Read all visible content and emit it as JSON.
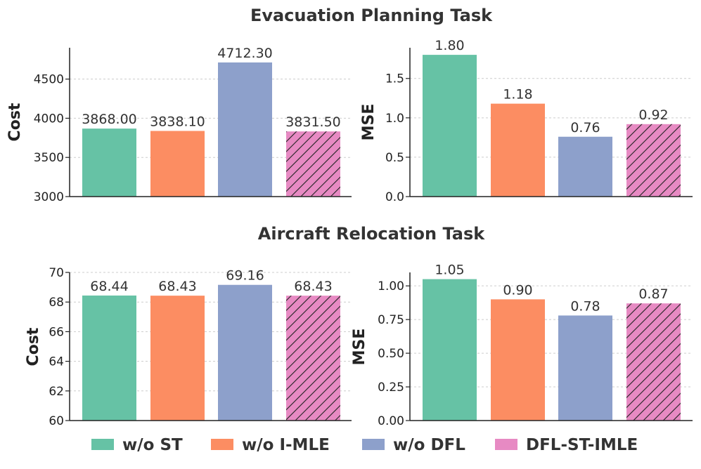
{
  "section_titles": [
    "Evacuation Planning Task",
    "Aircraft Relocation Task"
  ],
  "legend": [
    {
      "label": "w/o ST",
      "color": "#66c2a5",
      "hatch": false
    },
    {
      "label": "w/o I-MLE",
      "color": "#fc8d62",
      "hatch": false
    },
    {
      "label": "w/o DFL",
      "color": "#8da0cb",
      "hatch": false
    },
    {
      "label": "DFL-ST-IMLE",
      "color": "#e78ac3",
      "hatch": true
    }
  ],
  "chart_data": [
    {
      "type": "bar",
      "section": "Evacuation Planning Task",
      "categories": [
        "w/o ST",
        "w/o I-MLE",
        "w/o DFL",
        "DFL-ST-IMLE"
      ],
      "values": [
        3868.0,
        3838.1,
        4712.3,
        3831.5
      ],
      "value_labels": [
        "3868.00",
        "3838.10",
        "4712.30",
        "3831.50"
      ],
      "ylabel": "Cost",
      "ylim": [
        3000,
        4900
      ],
      "yticks": [
        3000,
        3500,
        4000,
        4500
      ],
      "ytick_labels": [
        "3000",
        "3500",
        "4000",
        "4500"
      ],
      "grid": true
    },
    {
      "type": "bar",
      "section": "Evacuation Planning Task",
      "categories": [
        "w/o ST",
        "w/o I-MLE",
        "w/o DFL",
        "DFL-ST-IMLE"
      ],
      "values": [
        1.8,
        1.18,
        0.76,
        0.92
      ],
      "value_labels": [
        "1.80",
        "1.18",
        "0.76",
        "0.92"
      ],
      "ylabel": "MSE",
      "ylim": [
        0,
        1.89
      ],
      "yticks": [
        0,
        0.5,
        1.0,
        1.5
      ],
      "ytick_labels": [
        "0.0",
        "0.5",
        "1.0",
        "1.5"
      ],
      "grid": true
    },
    {
      "type": "bar",
      "section": "Aircraft Relocation Task",
      "categories": [
        "w/o ST",
        "w/o I-MLE",
        "w/o DFL",
        "DFL-ST-IMLE"
      ],
      "values": [
        68.44,
        68.43,
        69.16,
        68.43
      ],
      "value_labels": [
        "68.44",
        "68.43",
        "69.16",
        "68.43"
      ],
      "ylabel": "Cost",
      "ylim": [
        60,
        70
      ],
      "yticks": [
        60,
        62,
        64,
        66,
        68,
        70
      ],
      "ytick_labels": [
        "60",
        "62",
        "64",
        "66",
        "68",
        "70"
      ],
      "grid": true
    },
    {
      "type": "bar",
      "section": "Aircraft Relocation Task",
      "categories": [
        "w/o ST",
        "w/o I-MLE",
        "w/o DFL",
        "DFL-ST-IMLE"
      ],
      "values": [
        1.05,
        0.9,
        0.78,
        0.87
      ],
      "value_labels": [
        "1.05",
        "0.90",
        "0.78",
        "0.87"
      ],
      "ylabel": "MSE",
      "ylim": [
        0,
        1.1
      ],
      "yticks": [
        0,
        0.25,
        0.5,
        0.75,
        1.0
      ],
      "ytick_labels": [
        "0.00",
        "0.25",
        "0.50",
        "0.75",
        "1.00"
      ],
      "grid": true
    }
  ]
}
